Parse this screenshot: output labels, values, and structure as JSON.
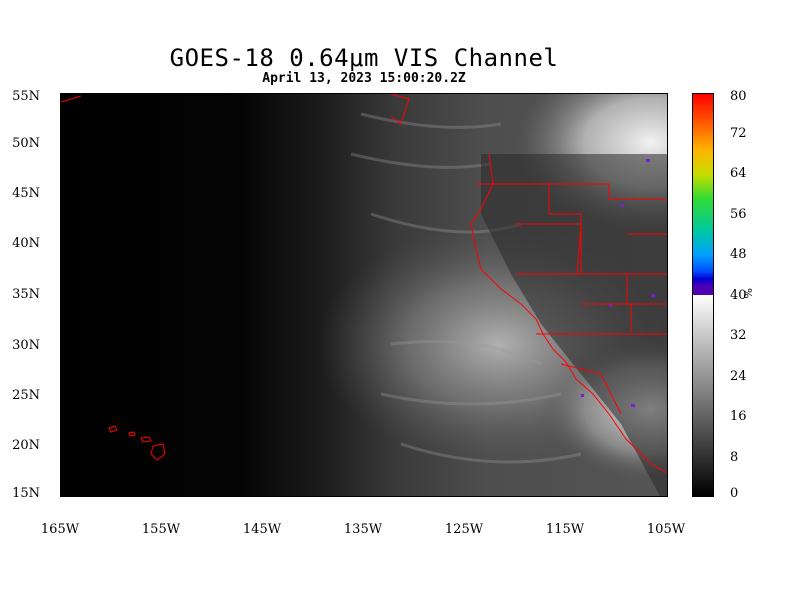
{
  "header": {
    "title": "GOES-18  0.64μm VIS Channel",
    "subtitle": "April 13,  2023 15:00:20.2Z"
  },
  "map": {
    "lat_labels": [
      "55N",
      "50N",
      "45N",
      "40N",
      "35N",
      "30N",
      "25N",
      "20N",
      "15N"
    ],
    "lon_labels": [
      "165W",
      "155W",
      "145W",
      "135W",
      "125W",
      "115W",
      "105W"
    ],
    "lat_range": [
      15,
      55
    ],
    "lon_range": [
      -165,
      -105
    ],
    "border_color": "#ff0000"
  },
  "colorbar": {
    "unit": "%",
    "ticks": [
      "80",
      "72",
      "64",
      "56",
      "48",
      "40",
      "32",
      "24",
      "16",
      "8",
      "0"
    ],
    "range": [
      0,
      80
    ]
  }
}
